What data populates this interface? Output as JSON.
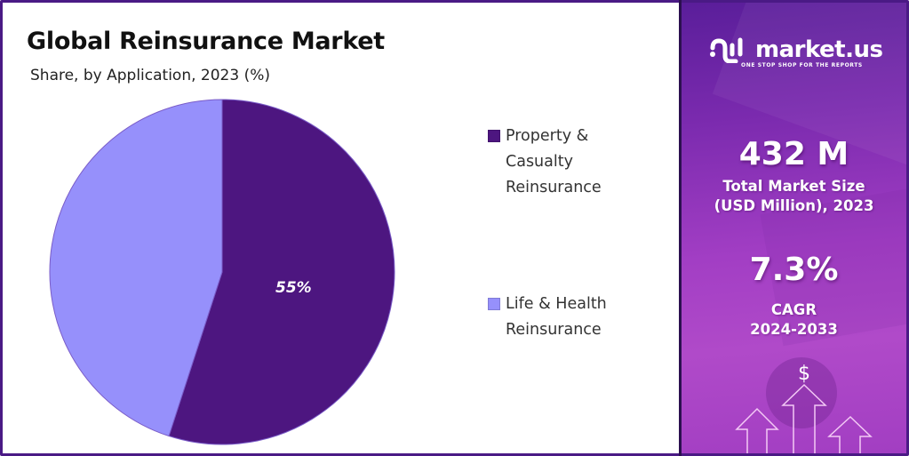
{
  "header": {
    "title": "Global Reinsurance Market",
    "subtitle": "Share, by Application, 2023 (%)"
  },
  "chart_data": {
    "type": "pie",
    "title": "Global Reinsurance Market",
    "subtitle": "Share, by Application, 2023 (%)",
    "categories": [
      "Property & Casualty Reinsurance",
      "Life & Health Reinsurance"
    ],
    "values": [
      55,
      45
    ],
    "colors": [
      "#4d1680",
      "#9690fb"
    ],
    "data_labels": [
      "55%",
      ""
    ],
    "legend_position": "right",
    "start_angle_deg": 0,
    "direction": "clockwise"
  },
  "pie": {
    "label_primary": "55%"
  },
  "legend": {
    "items": [
      {
        "label": "Property &\nCasualty\nReinsurance",
        "color": "#4d1680"
      },
      {
        "label": "Life & Health\nReinsurance",
        "color": "#9690fb"
      }
    ]
  },
  "sidebar": {
    "brand": "market.us",
    "tagline": "ONE STOP SHOP FOR THE REPORTS",
    "market_size_value": "432 M",
    "market_size_label": "Total Market Size\n(USD Million), 2023",
    "cagr_value": "7.3%",
    "cagr_label": "CAGR\n2024-2033",
    "dollar_symbol": "$"
  },
  "colors": {
    "border": "#4a1a85",
    "accent_dark": "#4d1680",
    "accent_light": "#9690fb"
  }
}
